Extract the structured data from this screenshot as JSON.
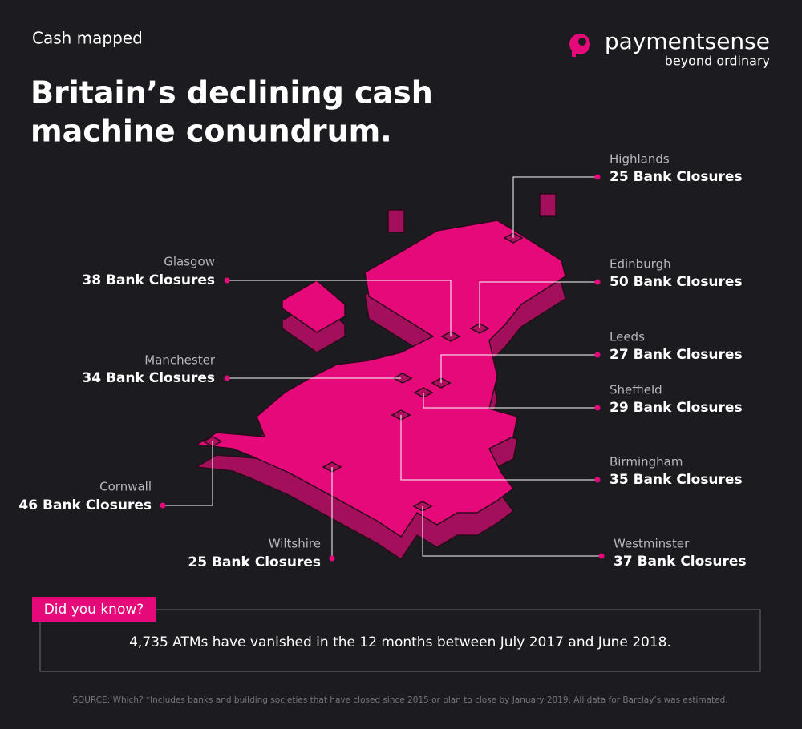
{
  "header": {
    "kicker": "Cash mapped",
    "title_lines": [
      "Britain’s declining cash",
      "machine conundrum."
    ],
    "logo": {
      "name": "paymentsense",
      "tagline": "beyond ordinary"
    }
  },
  "locations": [
    {
      "name": "Highlands",
      "closures": "25 Bank Closures"
    },
    {
      "name": "Glasgow",
      "closures": "38 Bank Closures"
    },
    {
      "name": "Edinburgh",
      "closures": "50 Bank Closures"
    },
    {
      "name": "Leeds",
      "closures": "27 Bank Closures"
    },
    {
      "name": "Manchester",
      "closures": "34 Bank Closures"
    },
    {
      "name": "Sheffield",
      "closures": "29 Bank Closures"
    },
    {
      "name": "Birmingham",
      "closures": "35 Bank Closures"
    },
    {
      "name": "Cornwall",
      "closures": "46 Bank Closures"
    },
    {
      "name": "Wiltshire",
      "closures": "25 Bank Closures"
    },
    {
      "name": "Westminster",
      "closures": "37 Bank Closures"
    }
  ],
  "callout": {
    "tab": "Did you know?",
    "text": "4,735 ATMs have vanished in the 12 months between July 2017 and June 2018."
  },
  "source": "SOURCE: Which? *Includes banks and building societies that have closed since 2015 or plan to close by January 2019. All data for Barclay’s was estimated."
}
